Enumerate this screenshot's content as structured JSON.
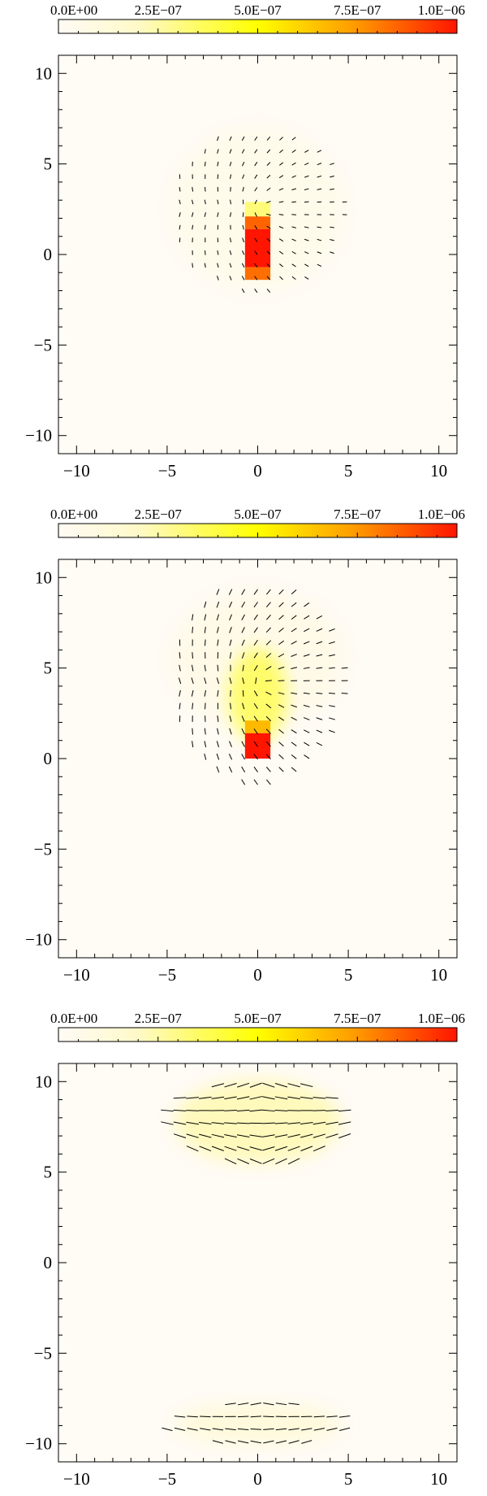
{
  "colorbar": {
    "labels": [
      "0.0E+00",
      "2.5E−07",
      "5.0E−07",
      "7.5E−07",
      "1.0E−06"
    ],
    "min": 0,
    "max": 1e-06,
    "stops": [
      {
        "v": 0.0,
        "color": "#fffbf5"
      },
      {
        "v": 0.2,
        "color": "#fff9c8"
      },
      {
        "v": 0.5,
        "color": "#ffff00"
      },
      {
        "v": 0.75,
        "color": "#ff9800"
      },
      {
        "v": 1.0,
        "color": "#ff1500"
      }
    ]
  },
  "axes": {
    "xlim": [
      -11,
      11
    ],
    "ylim": [
      -11,
      11
    ],
    "major_ticks": [
      -10,
      -5,
      0,
      5,
      10
    ],
    "tick_labels": [
      "−10",
      "−5",
      "0",
      "5",
      "10"
    ],
    "minor_step": 1
  },
  "chart_data": [
    {
      "type": "heatmap",
      "panel": 1,
      "background_value": 0,
      "blobs": [
        {
          "cx": 0,
          "cy": 2.5,
          "rx": 4.8,
          "ry": 4.5,
          "value": 5e-08
        }
      ],
      "cells": [
        {
          "x0": -0.7,
          "x1": 0.7,
          "y0": 2.1,
          "y1": 2.9,
          "value": 3.2e-07
        },
        {
          "x0": -0.7,
          "x1": 0.7,
          "y0": 1.4,
          "y1": 2.1,
          "value": 8.5e-07
        },
        {
          "x0": -0.7,
          "x1": 0.7,
          "y0": -0.7,
          "y1": 1.4,
          "value": 1e-06
        },
        {
          "x0": -0.7,
          "x1": 0.7,
          "y0": -1.4,
          "y1": -0.7,
          "value": 8.3e-07
        }
      ],
      "vectors": {
        "x_range": [
          -5,
          5
        ],
        "y_range": [
          -2,
          7
        ],
        "step": 0.7,
        "region": {
          "cx": 0,
          "cy": 2.5,
          "rx": 4.9,
          "ry": 4.6
        },
        "length": 0.25,
        "angle_mode": "radial"
      }
    },
    {
      "type": "heatmap",
      "panel": 2,
      "background_value": 0,
      "blobs": [
        {
          "cx": 0,
          "cy": 5.5,
          "rx": 4.8,
          "ry": 3.8,
          "value": 6e-08
        },
        {
          "cx": 0,
          "cy": 3.5,
          "rx": 1.6,
          "ry": 2.6,
          "value": 3.4e-07
        }
      ],
      "cells": [
        {
          "x0": -0.7,
          "x1": 0.7,
          "y0": 1.4,
          "y1": 2.1,
          "value": 6.7e-07
        },
        {
          "x0": -0.7,
          "x1": 0.7,
          "y0": 0.0,
          "y1": 1.4,
          "value": 1e-06
        }
      ],
      "vectors": {
        "x_range": [
          -5,
          5
        ],
        "y_range": [
          -2,
          9.5
        ],
        "step": 0.7,
        "region": {
          "cx": 0,
          "cy": 4.2,
          "rx": 4.9,
          "ry": 5.6
        },
        "length": 0.35,
        "angle_mode": "radial"
      }
    },
    {
      "type": "heatmap",
      "panel": 3,
      "background_value": 0,
      "blobs": [
        {
          "cx": 0,
          "cy": 7.8,
          "rx": 4.6,
          "ry": 2.3,
          "value": 2.2e-07
        },
        {
          "cx": 0,
          "cy": -8.9,
          "rx": 4.6,
          "ry": 1.2,
          "value": 1.1e-07
        }
      ],
      "cells": [],
      "vectors": {
        "groups": [
          {
            "x_range": [
              -5,
              5
            ],
            "y_range": [
              5.6,
              10.0
            ],
            "step": 0.7,
            "region": {
              "cx": 0,
              "cy": 7.8,
              "rx": 5.2,
              "ry": 2.4
            },
            "length": 0.7
          },
          {
            "x_range": [
              -5,
              5
            ],
            "y_range": [
              -9.9,
              -7.8
            ],
            "step": 0.7,
            "region": {
              "cx": 0,
              "cy": -8.9,
              "rx": 5.2,
              "ry": 1.2
            },
            "length": 0.6
          }
        ],
        "angle_mode": "horizontal"
      }
    }
  ]
}
